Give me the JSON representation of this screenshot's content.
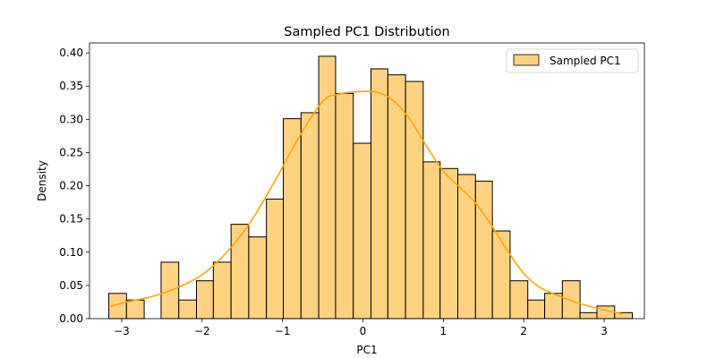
{
  "chart_data": {
    "type": "bar",
    "title": "Sampled PC1 Distribution",
    "xlabel": "PC1",
    "ylabel": "Density",
    "xlim": [
      -3.4,
      3.5
    ],
    "ylim": [
      0,
      0.415
    ],
    "xticks": [
      -3,
      -2,
      -1,
      0,
      1,
      2,
      3
    ],
    "xtick_labels": [
      "−3",
      "−2",
      "−1",
      "0",
      "1",
      "2",
      "3"
    ],
    "yticks": [
      0.0,
      0.05,
      0.1,
      0.15,
      0.2,
      0.25,
      0.3,
      0.35,
      0.4
    ],
    "ytick_labels": [
      "0.00",
      "0.05",
      "0.10",
      "0.15",
      "0.20",
      "0.25",
      "0.30",
      "0.35",
      "0.40"
    ],
    "grid": false,
    "legend_position": "top-right",
    "bin_edges": [
      -3.16,
      -2.94,
      -2.72,
      -2.51,
      -2.29,
      -2.07,
      -1.86,
      -1.64,
      -1.42,
      -1.2,
      -0.99,
      -0.77,
      -0.55,
      -0.34,
      -0.12,
      0.1,
      0.31,
      0.53,
      0.75,
      0.96,
      1.18,
      1.4,
      1.61,
      1.83,
      2.05,
      2.26,
      2.48,
      2.7,
      2.91,
      3.13,
      3.35
    ],
    "series": [
      {
        "name": "Sampled PC1",
        "kind": "histogram",
        "color": "#ffd280",
        "edge_color": "#000000",
        "values": [
          0.038,
          0.028,
          0.0,
          0.085,
          0.028,
          0.057,
          0.085,
          0.142,
          0.123,
          0.18,
          0.301,
          0.31,
          0.395,
          0.339,
          0.264,
          0.376,
          0.367,
          0.357,
          0.236,
          0.226,
          0.217,
          0.207,
          0.132,
          0.057,
          0.028,
          0.038,
          0.057,
          0.009,
          0.019,
          0.009
        ]
      },
      {
        "name": "KDE",
        "kind": "line",
        "color": "#ffa500",
        "x": [
          -3.16,
          -2.9,
          -2.6,
          -2.3,
          -2.0,
          -1.7,
          -1.4,
          -1.1,
          -0.8,
          -0.5,
          -0.3,
          0.0,
          0.2,
          0.4,
          0.6,
          0.8,
          1.0,
          1.2,
          1.4,
          1.6,
          1.8,
          2.0,
          2.2,
          2.5,
          2.8,
          3.0,
          3.23
        ],
        "y": [
          0.018,
          0.026,
          0.034,
          0.047,
          0.066,
          0.099,
          0.145,
          0.206,
          0.272,
          0.327,
          0.338,
          0.342,
          0.34,
          0.326,
          0.297,
          0.258,
          0.222,
          0.198,
          0.174,
          0.14,
          0.102,
          0.068,
          0.047,
          0.031,
          0.019,
          0.013,
          0.007
        ]
      }
    ]
  }
}
